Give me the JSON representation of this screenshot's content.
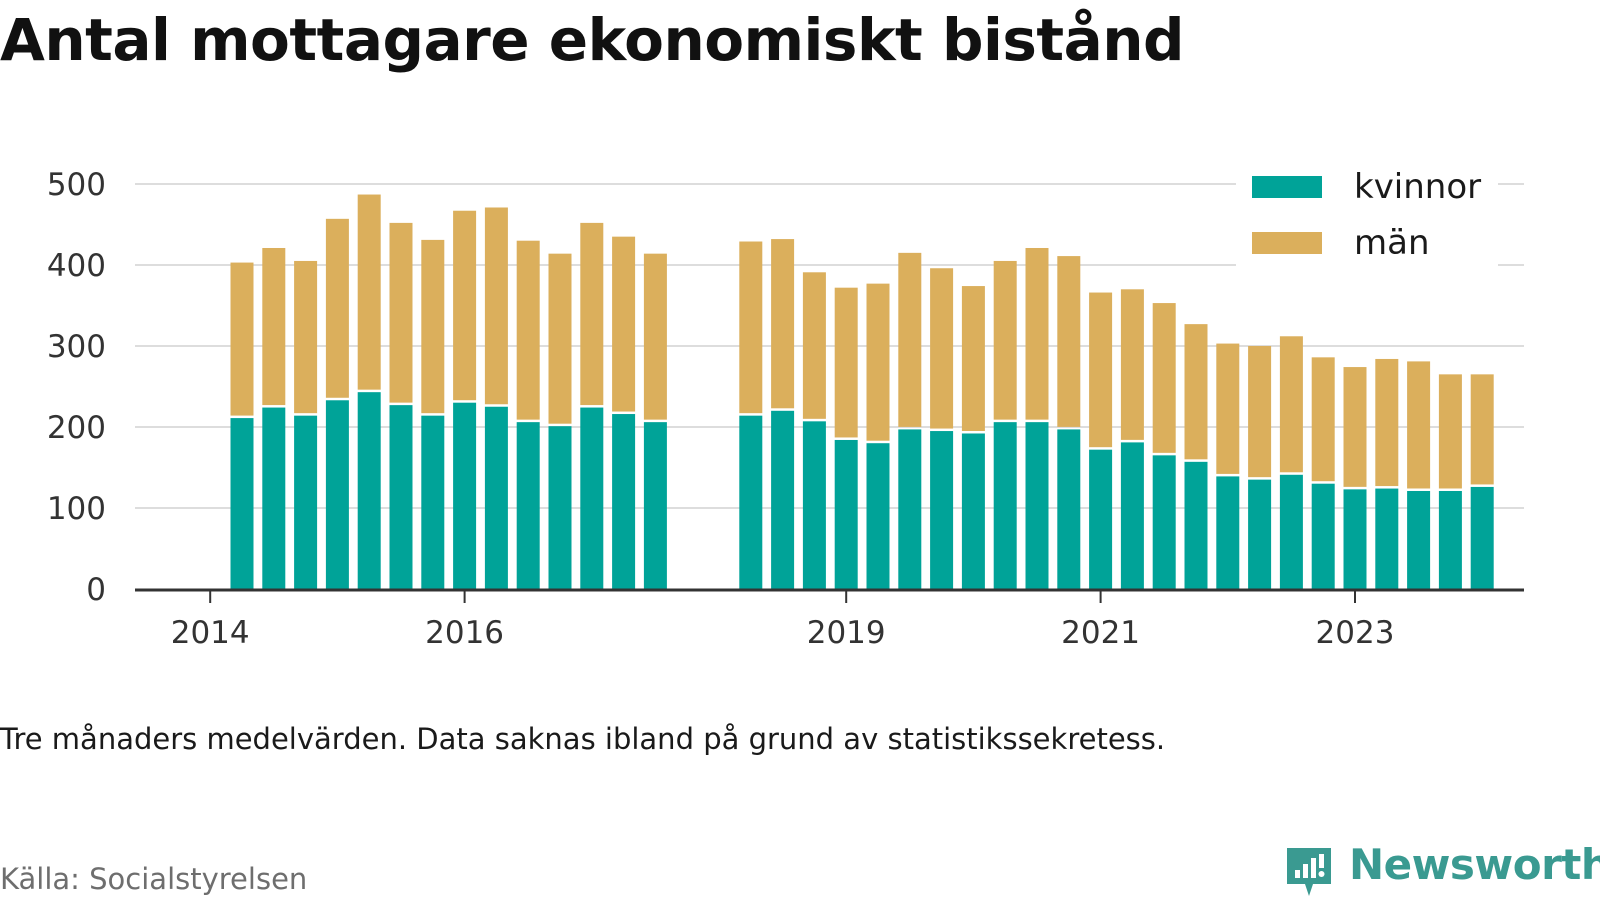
{
  "title": "Antal mottagare ekonomiskt bistånd",
  "note": "Tre månaders medelvärden. Data saknas ibland på grund av statistikssekretess.",
  "source": "Källa: Socialstyrelsen",
  "brand": {
    "name": "Newsworthy",
    "icon": "newsworthy-logo-icon",
    "color": "#3a9a91"
  },
  "colors": {
    "kvinnor": "#00a398",
    "man": "#dbaf5c",
    "grid": "#dddddd",
    "axis": "#333333"
  },
  "chart_data": {
    "type": "bar",
    "stacked": true,
    "x_ticks": [
      "2014",
      "2016",
      "2019",
      "2021",
      "2023"
    ],
    "ylim": [
      0,
      500
    ],
    "y_ticks": [
      0,
      100,
      200,
      300,
      400,
      500
    ],
    "grid": true,
    "legend_position": "top-right",
    "series_names": [
      "kvinnor",
      "män"
    ],
    "x": [
      "2014-Q2",
      "2014-Q3",
      "2014-Q4",
      "2015-Q1",
      "2015-Q2",
      "2015-Q3",
      "2015-Q4",
      "2016-Q1",
      "2016-Q2",
      "2016-Q3",
      "2016-Q4",
      "2017-Q1",
      "2017-Q2",
      "2017-Q3",
      "2017-Q4",
      "2018-Q1",
      "2018-Q2",
      "2018-Q3",
      "2018-Q4",
      "2019-Q1",
      "2019-Q2",
      "2019-Q3",
      "2019-Q4",
      "2020-Q1",
      "2020-Q2",
      "2020-Q3",
      "2020-Q4",
      "2021-Q1",
      "2021-Q2",
      "2021-Q3",
      "2021-Q4",
      "2022-Q1",
      "2022-Q2",
      "2022-Q3",
      "2022-Q4",
      "2023-Q1",
      "2023-Q2",
      "2023-Q3",
      "2023-Q4",
      "2024-Q1"
    ],
    "series": [
      {
        "name": "kvinnor",
        "values": [
          211,
          224,
          214,
          233,
          243,
          227,
          214,
          230,
          225,
          206,
          201,
          224,
          216,
          206,
          null,
          null,
          214,
          220,
          207,
          184,
          180,
          197,
          195,
          192,
          206,
          206,
          197,
          172,
          181,
          165,
          157,
          139,
          135,
          141,
          130,
          123,
          124,
          121,
          121,
          126
        ]
      },
      {
        "name": "män",
        "values": [
          192,
          197,
          191,
          224,
          244,
          225,
          217,
          237,
          246,
          224,
          213,
          228,
          219,
          208,
          null,
          null,
          215,
          212,
          184,
          188,
          197,
          218,
          201,
          182,
          199,
          215,
          214,
          194,
          189,
          188,
          170,
          164,
          165,
          171,
          156,
          151,
          160,
          160,
          144,
          139
        ]
      }
    ]
  }
}
